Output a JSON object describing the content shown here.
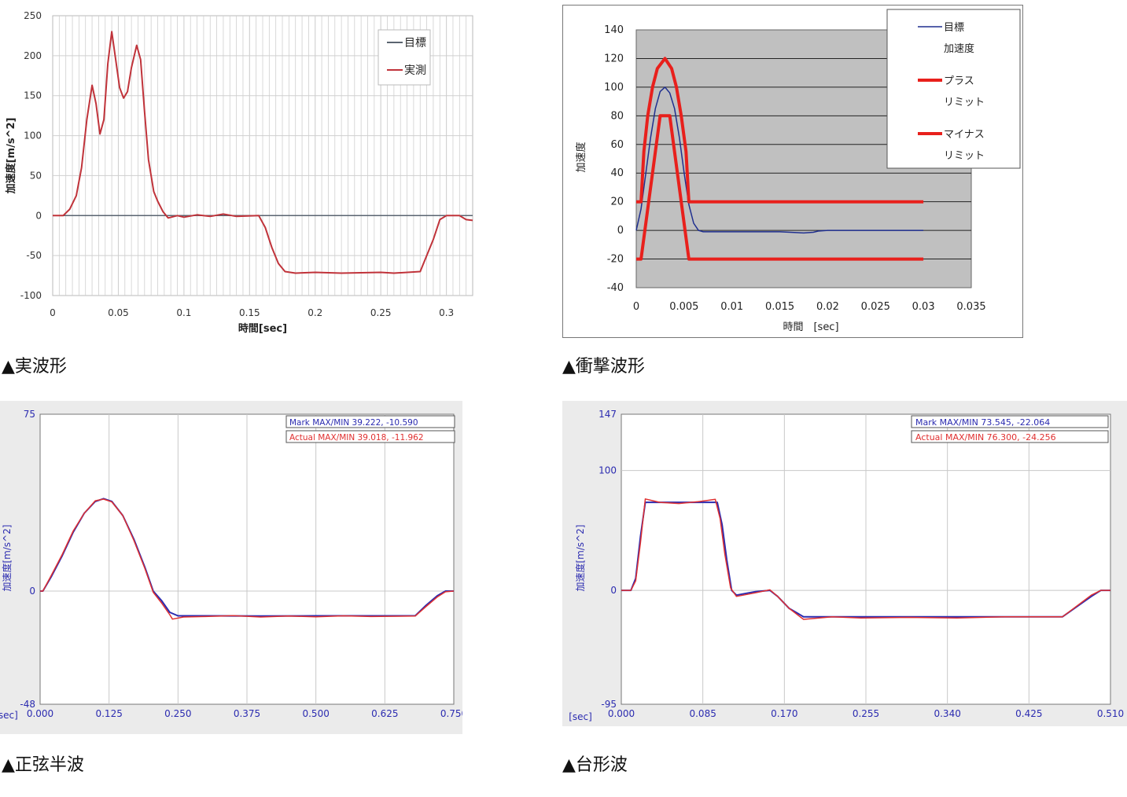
{
  "colors": {
    "target": "#1f2f8f",
    "actual": "#d6363a",
    "limit": "#e8201c",
    "grid": "#c8c8c8",
    "plot_bg_gray": "#c0c0c0"
  },
  "captions": {
    "c1": "▲実波形",
    "c2": "▲衝撃波形",
    "c3": "▲正弦半波",
    "c4": "▲台形波"
  },
  "chart_data": [
    {
      "id": "real-waveform",
      "type": "line",
      "xlabel": "時間[sec]",
      "ylabel": "加速度[m/s^2]",
      "xlim": [
        0,
        0.32
      ],
      "ylim": [
        -100,
        250
      ],
      "x_ticks": [
        0,
        0.05,
        0.1,
        0.15,
        0.2,
        0.25,
        0.3
      ],
      "x_tick_labels": [
        "0",
        "0.05",
        "0.1",
        "0.15",
        "0.2",
        "0.25",
        "0.3"
      ],
      "y_ticks": [
        -100,
        -50,
        0,
        50,
        100,
        150,
        200,
        250
      ],
      "y_tick_labels": [
        "-100",
        "-50",
        "0",
        "50",
        "100",
        "150",
        "200",
        "250"
      ],
      "grid": true,
      "legend": "top-right",
      "series": [
        {
          "name": "目標",
          "color": "#5a6470",
          "points": [
            [
              0,
              0
            ],
            [
              0.32,
              0
            ]
          ]
        },
        {
          "name": "実測",
          "color": "#c0333a",
          "points": [
            [
              0,
              0
            ],
            [
              0.008,
              0
            ],
            [
              0.013,
              8
            ],
            [
              0.018,
              25
            ],
            [
              0.022,
              60
            ],
            [
              0.026,
              120
            ],
            [
              0.03,
              163
            ],
            [
              0.033,
              140
            ],
            [
              0.036,
              102
            ],
            [
              0.039,
              120
            ],
            [
              0.042,
              190
            ],
            [
              0.045,
              230
            ],
            [
              0.048,
              195
            ],
            [
              0.051,
              160
            ],
            [
              0.054,
              147
            ],
            [
              0.057,
              155
            ],
            [
              0.06,
              185
            ],
            [
              0.064,
              213
            ],
            [
              0.067,
              195
            ],
            [
              0.07,
              130
            ],
            [
              0.073,
              70
            ],
            [
              0.077,
              30
            ],
            [
              0.08,
              18
            ],
            [
              0.084,
              5
            ],
            [
              0.088,
              -3
            ],
            [
              0.095,
              0
            ],
            [
              0.1,
              -2
            ],
            [
              0.11,
              1
            ],
            [
              0.12,
              -1
            ],
            [
              0.13,
              2
            ],
            [
              0.14,
              -1
            ],
            [
              0.157,
              0
            ],
            [
              0.162,
              -15
            ],
            [
              0.167,
              -40
            ],
            [
              0.172,
              -60
            ],
            [
              0.177,
              -70
            ],
            [
              0.185,
              -72
            ],
            [
              0.2,
              -71
            ],
            [
              0.22,
              -72
            ],
            [
              0.25,
              -71
            ],
            [
              0.26,
              -72
            ],
            [
              0.28,
              -70
            ],
            [
              0.285,
              -50
            ],
            [
              0.29,
              -30
            ],
            [
              0.295,
              -5
            ],
            [
              0.3,
              0
            ],
            [
              0.31,
              0
            ],
            [
              0.315,
              -5
            ],
            [
              0.32,
              -6
            ]
          ]
        }
      ]
    },
    {
      "id": "shock-waveform",
      "type": "line",
      "xlabel": "時間　[sec]",
      "ylabel": "加速度",
      "xlim": [
        0,
        0.035
      ],
      "ylim": [
        -40,
        140
      ],
      "x_ticks": [
        0,
        0.005,
        0.01,
        0.015,
        0.02,
        0.025,
        0.03,
        0.035
      ],
      "x_tick_labels": [
        "0",
        "0.005",
        "0.01",
        "0.015",
        "0.02",
        "0.025",
        "0.03",
        "0.035"
      ],
      "y_ticks": [
        -40,
        -20,
        0,
        20,
        40,
        60,
        80,
        100,
        120,
        140
      ],
      "y_tick_labels": [
        "-40",
        "-20",
        "0",
        "20",
        "40",
        "60",
        "80",
        "100",
        "120",
        "140"
      ],
      "grid": true,
      "legend": "top-right",
      "legend_items": [
        {
          "line1": "目標",
          "line2": "加速度",
          "color": "#1f2f8f",
          "width": 1.5
        },
        {
          "line1": "プラス",
          "line2": "リミット",
          "color": "#e8201c",
          "width": 4
        },
        {
          "line1": "マイナス",
          "line2": "リミット",
          "color": "#e8201c",
          "width": 4
        }
      ],
      "series": [
        {
          "name": "目標加速度",
          "color": "#1f2f8f",
          "points": [
            [
              0,
              0
            ],
            [
              0.0005,
              15
            ],
            [
              0.001,
              40
            ],
            [
              0.0015,
              65
            ],
            [
              0.002,
              85
            ],
            [
              0.0025,
              97
            ],
            [
              0.003,
              100
            ],
            [
              0.0035,
              96
            ],
            [
              0.004,
              85
            ],
            [
              0.0045,
              65
            ],
            [
              0.005,
              40
            ],
            [
              0.0055,
              18
            ],
            [
              0.006,
              5
            ],
            [
              0.0065,
              0
            ],
            [
              0.007,
              -1
            ],
            [
              0.01,
              -1
            ],
            [
              0.015,
              -1
            ],
            [
              0.0165,
              -1.5
            ],
            [
              0.0175,
              -1.8
            ],
            [
              0.0185,
              -1.3
            ],
            [
              0.019,
              -0.5
            ],
            [
              0.02,
              0
            ],
            [
              0.03,
              0
            ]
          ]
        },
        {
          "name": "プラスリミット",
          "color": "#e8201c",
          "points": [
            [
              0,
              20
            ],
            [
              0.0005,
              20
            ],
            [
              0.0008,
              55
            ],
            [
              0.0012,
              80
            ],
            [
              0.0017,
              100
            ],
            [
              0.0022,
              113
            ],
            [
              0.003,
              120
            ],
            [
              0.0037,
              113
            ],
            [
              0.0042,
              100
            ],
            [
              0.0047,
              80
            ],
            [
              0.0052,
              55
            ],
            [
              0.0055,
              20
            ],
            [
              0.03,
              20
            ]
          ]
        },
        {
          "name": "マイナスリミット",
          "color": "#e8201c",
          "points": [
            [
              0,
              -20
            ],
            [
              0.0005,
              -20
            ],
            [
              0.0025,
              80
            ],
            [
              0.0035,
              80
            ],
            [
              0.0055,
              -20
            ],
            [
              0.03,
              -20
            ]
          ]
        }
      ]
    },
    {
      "id": "half-sine",
      "type": "line",
      "xlabel": "[sec]",
      "ylabel": "加速度[m/s^2]",
      "xlim": [
        0,
        0.75
      ],
      "ylim": [
        -48,
        75
      ],
      "x_ticks": [
        0,
        0.125,
        0.25,
        0.375,
        0.5,
        0.625,
        0.75
      ],
      "x_tick_labels": [
        "0.000",
        "0.125",
        "0.250",
        "0.375",
        "0.500",
        "0.625",
        "0.750"
      ],
      "y_ticks": [
        -48,
        0,
        75
      ],
      "y_tick_labels": [
        "-48",
        "0",
        "75"
      ],
      "grid": true,
      "legend": "top-right",
      "legend_items": [
        {
          "label": "Mark   MAX/MIN 39.222, -10.590",
          "color": "#2b2bb0"
        },
        {
          "label": "Actual MAX/MIN 39.018, -11.962",
          "color": "#e03030"
        }
      ],
      "series": [
        {
          "name": "Mark",
          "color": "#2b2bb0",
          "points": [
            [
              0,
              0
            ],
            [
              0.005,
              0
            ],
            [
              0.02,
              6
            ],
            [
              0.04,
              15
            ],
            [
              0.06,
              25
            ],
            [
              0.08,
              33
            ],
            [
              0.1,
              38
            ],
            [
              0.115,
              39.2
            ],
            [
              0.13,
              38
            ],
            [
              0.15,
              32
            ],
            [
              0.17,
              22
            ],
            [
              0.19,
              10
            ],
            [
              0.205,
              0
            ],
            [
              0.22,
              -4
            ],
            [
              0.235,
              -9
            ],
            [
              0.25,
              -10.5
            ],
            [
              0.3,
              -10.5
            ],
            [
              0.4,
              -10.6
            ],
            [
              0.5,
              -10.5
            ],
            [
              0.6,
              -10.5
            ],
            [
              0.68,
              -10.5
            ],
            [
              0.7,
              -6
            ],
            [
              0.72,
              -2
            ],
            [
              0.735,
              0
            ],
            [
              0.75,
              0
            ]
          ]
        },
        {
          "name": "Actual",
          "color": "#e03030",
          "points": [
            [
              0,
              0
            ],
            [
              0.005,
              0
            ],
            [
              0.02,
              6.5
            ],
            [
              0.04,
              15.5
            ],
            [
              0.06,
              25.5
            ],
            [
              0.08,
              33
            ],
            [
              0.1,
              38.3
            ],
            [
              0.115,
              39
            ],
            [
              0.13,
              37.8
            ],
            [
              0.15,
              32
            ],
            [
              0.17,
              21.5
            ],
            [
              0.19,
              9.5
            ],
            [
              0.205,
              -0.5
            ],
            [
              0.22,
              -5
            ],
            [
              0.235,
              -10
            ],
            [
              0.24,
              -11.9
            ],
            [
              0.26,
              -11
            ],
            [
              0.3,
              -10.8
            ],
            [
              0.35,
              -10.4
            ],
            [
              0.4,
              -11
            ],
            [
              0.45,
              -10.6
            ],
            [
              0.5,
              -10.9
            ],
            [
              0.55,
              -10.5
            ],
            [
              0.6,
              -10.8
            ],
            [
              0.68,
              -10.6
            ],
            [
              0.7,
              -6.5
            ],
            [
              0.72,
              -2.5
            ],
            [
              0.735,
              -0.3
            ],
            [
              0.75,
              0
            ]
          ]
        }
      ]
    },
    {
      "id": "trapezoid",
      "type": "line",
      "xlabel": "[sec]",
      "ylabel": "加速度[m/s^2]",
      "xlim": [
        0,
        0.51
      ],
      "ylim": [
        -95,
        147
      ],
      "x_ticks": [
        0,
        0.085,
        0.17,
        0.255,
        0.34,
        0.425,
        0.51
      ],
      "x_tick_labels": [
        "0.000",
        "0.085",
        "0.170",
        "0.255",
        "0.340",
        "0.425",
        "0.510"
      ],
      "y_ticks": [
        -95,
        0,
        100,
        147
      ],
      "y_tick_labels": [
        "-95",
        "0",
        "100",
        "147"
      ],
      "grid": true,
      "legend": "top-right",
      "legend_items": [
        {
          "label": "Mark   MAX/MIN 73.545, -22.064",
          "color": "#2b2bb0"
        },
        {
          "label": "Actual MAX/MIN 76.300, -24.256",
          "color": "#e03030"
        }
      ],
      "series": [
        {
          "name": "Mark",
          "color": "#2b2bb0",
          "points": [
            [
              0,
              0
            ],
            [
              0.01,
              0
            ],
            [
              0.015,
              10
            ],
            [
              0.02,
              45
            ],
            [
              0.025,
              73.5
            ],
            [
              0.1,
              73.5
            ],
            [
              0.105,
              55
            ],
            [
              0.11,
              25
            ],
            [
              0.115,
              0
            ],
            [
              0.12,
              -4
            ],
            [
              0.14,
              -1
            ],
            [
              0.155,
              0
            ],
            [
              0.163,
              -5
            ],
            [
              0.175,
              -15
            ],
            [
              0.19,
              -22
            ],
            [
              0.2,
              -22
            ],
            [
              0.3,
              -22
            ],
            [
              0.4,
              -22
            ],
            [
              0.46,
              -22
            ],
            [
              0.49,
              -5
            ],
            [
              0.5,
              0
            ],
            [
              0.51,
              0
            ]
          ]
        },
        {
          "name": "Actual",
          "color": "#e03030",
          "points": [
            [
              0,
              0
            ],
            [
              0.01,
              0
            ],
            [
              0.015,
              8
            ],
            [
              0.02,
              40
            ],
            [
              0.025,
              76.3
            ],
            [
              0.04,
              73.5
            ],
            [
              0.06,
              72.5
            ],
            [
              0.08,
              74
            ],
            [
              0.098,
              76
            ],
            [
              0.103,
              60
            ],
            [
              0.108,
              30
            ],
            [
              0.114,
              2
            ],
            [
              0.12,
              -5
            ],
            [
              0.14,
              -2
            ],
            [
              0.155,
              0.5
            ],
            [
              0.163,
              -5
            ],
            [
              0.175,
              -15
            ],
            [
              0.19,
              -24.2
            ],
            [
              0.22,
              -22
            ],
            [
              0.25,
              -23
            ],
            [
              0.3,
              -22.5
            ],
            [
              0.35,
              -23
            ],
            [
              0.4,
              -22
            ],
            [
              0.46,
              -22
            ],
            [
              0.49,
              -4
            ],
            [
              0.5,
              0
            ],
            [
              0.51,
              0
            ]
          ]
        }
      ]
    }
  ]
}
